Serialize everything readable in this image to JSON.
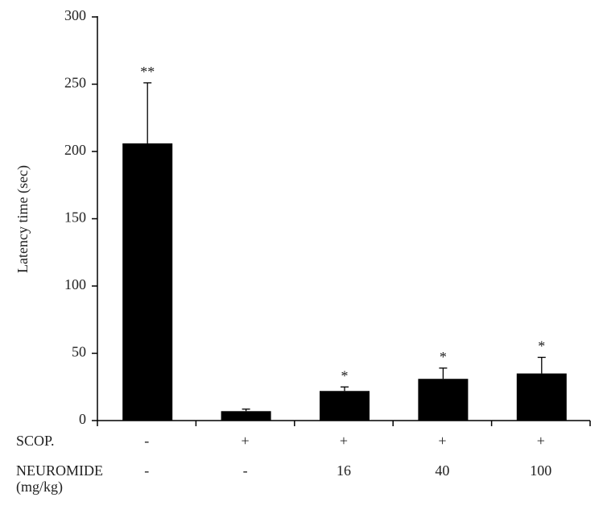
{
  "chart_data": {
    "type": "bar",
    "y_label": "Latency time (sec)",
    "values": [
      206,
      7,
      22,
      31,
      35
    ],
    "errors": [
      45,
      1.5,
      3,
      8,
      12
    ],
    "annotations": [
      "**",
      null,
      "*",
      "*",
      "*"
    ],
    "color": "#000000",
    "ylim": [
      0,
      300
    ],
    "yticks": [
      0,
      50,
      100,
      150,
      200,
      250,
      300
    ],
    "rows": [
      {
        "label": "SCOP.",
        "values": [
          "-",
          "+",
          "+",
          "+",
          "+"
        ]
      },
      {
        "label": "NEUROMIDE",
        "sublabel": "(mg/kg)",
        "values": [
          "-",
          "-",
          "16",
          "40",
          "100"
        ]
      }
    ]
  }
}
